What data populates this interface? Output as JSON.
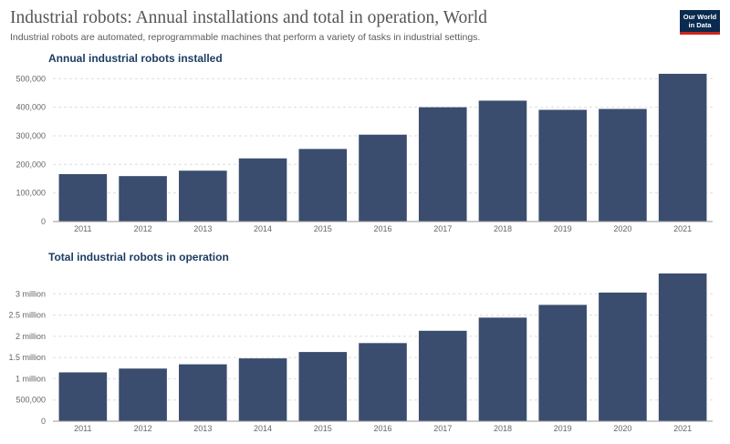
{
  "header": {
    "title": "Industrial robots: Annual installations and total in operation, World",
    "subtitle": "Industrial robots are automated, reprogrammable machines that perform a variety of tasks in industrial settings.",
    "logo_line1": "Our World",
    "logo_line2": "in Data"
  },
  "colors": {
    "bar": "#3b4d6e",
    "title": "#1d3d63",
    "logo_bg": "#0a2a4f",
    "logo_accent": "#ce261e"
  },
  "chart_data": [
    {
      "type": "bar",
      "title": "Annual industrial robots installed",
      "categories": [
        "2011",
        "2012",
        "2013",
        "2014",
        "2015",
        "2016",
        "2017",
        "2018",
        "2019",
        "2020",
        "2021"
      ],
      "values": [
        166000,
        159000,
        178000,
        221000,
        254000,
        304000,
        400000,
        423000,
        391000,
        394000,
        517000
      ],
      "ylim": [
        0,
        520000
      ],
      "yticks": [
        0,
        100000,
        200000,
        300000,
        400000,
        500000
      ],
      "ytick_labels": [
        "0",
        "100,000",
        "200,000",
        "300,000",
        "400,000",
        "500,000"
      ],
      "grid": true
    },
    {
      "type": "bar",
      "title": "Total industrial robots in operation",
      "categories": [
        "2011",
        "2012",
        "2013",
        "2014",
        "2015",
        "2016",
        "2017",
        "2018",
        "2019",
        "2020",
        "2021"
      ],
      "values": [
        1150000,
        1240000,
        1340000,
        1480000,
        1630000,
        1840000,
        2130000,
        2440000,
        2740000,
        3030000,
        3480000
      ],
      "ylim": [
        0,
        3500000
      ],
      "yticks": [
        0,
        500000,
        1000000,
        1500000,
        2000000,
        2500000,
        3000000
      ],
      "ytick_labels": [
        "0",
        "500,000",
        "1 million",
        "1.5 million",
        "2 million",
        "2.5 million",
        "3 million"
      ],
      "grid": true
    }
  ]
}
